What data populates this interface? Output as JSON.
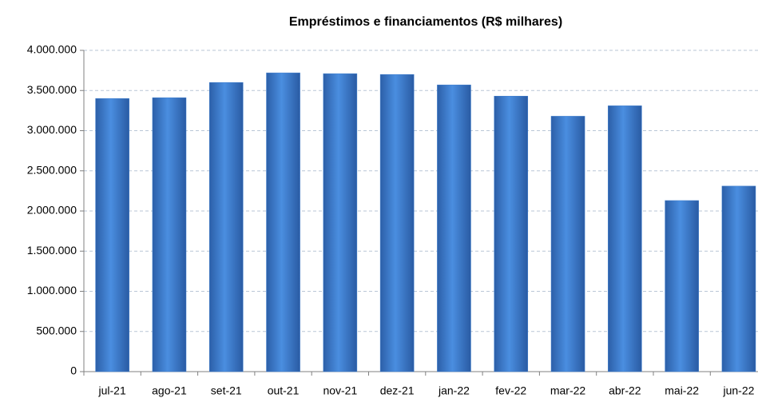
{
  "chart_data": {
    "type": "bar",
    "title": "Empréstimos e financiamentos (R$ milhares)",
    "categories": [
      "jul-21",
      "ago-21",
      "set-21",
      "out-21",
      "nov-21",
      "dez-21",
      "jan-22",
      "fev-22",
      "mar-22",
      "abr-22",
      "mai-22",
      "jun-22"
    ],
    "values": [
      3400000,
      3410000,
      3600000,
      3720000,
      3710000,
      3700000,
      3570000,
      3430000,
      3180000,
      3310000,
      2130000,
      2310000
    ],
    "color": "#3f7fcf",
    "ylim": [
      0,
      4000000
    ],
    "yticks": [
      0,
      {
        "value": 500000,
        "label": "500.000"
      },
      {
        "value": 1000000,
        "label": "1.000.000"
      },
      {
        "value": 1500000,
        "label": "1.500.000"
      },
      {
        "value": 2000000,
        "label": "2.000.000"
      },
      {
        "value": 2500000,
        "label": "2.500.000"
      },
      {
        "value": 3000000,
        "label": "3.000.000"
      },
      {
        "value": 3500000,
        "label": "3.500.000"
      },
      {
        "value": 4000000,
        "label": "4.000.000"
      }
    ],
    "grid": true
  }
}
